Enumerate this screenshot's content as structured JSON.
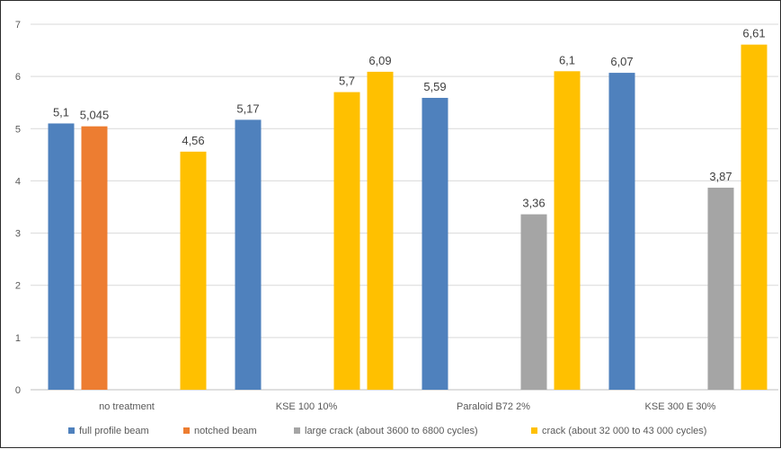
{
  "chart_data": {
    "type": "bar",
    "title": "",
    "xlabel": "",
    "ylabel": "",
    "ylim": [
      0,
      7
    ],
    "yticks": [
      "0",
      "1",
      "2",
      "3",
      "4",
      "5",
      "6",
      "7"
    ],
    "grid": true,
    "legend_position": "bottom",
    "categories": [
      "no treatment",
      "KSE 100 10%",
      "Paraloid B72 2%",
      "KSE 300 E 30%"
    ],
    "series": [
      {
        "name": "full profile beam",
        "color": "#4F81BD",
        "values": [
          5.1,
          5.17,
          5.59,
          6.07
        ],
        "labels": [
          "5,1",
          "5,17",
          "5,59",
          "6,07"
        ]
      },
      {
        "name": "notched beam",
        "color": "#ED7D31",
        "values": [
          5.045,
          null,
          null,
          null
        ],
        "labels": [
          "5,045",
          null,
          null,
          null
        ]
      },
      {
        "name": "large crack (about 3600 to 6800 cycles)",
        "color": "#A5A5A5",
        "values": [
          null,
          null,
          3.36,
          3.87
        ],
        "labels": [
          null,
          null,
          "3,36",
          "3,87"
        ]
      },
      {
        "name": "crack (about 32 000 to 43 000 cycles)",
        "color": "#FFC000",
        "values": [
          4.56,
          6.09,
          6.1,
          6.61
        ],
        "labels": [
          "4,56",
          "6,09",
          "6,1",
          "6,61"
        ]
      }
    ],
    "extra_series": {
      "name": "",
      "color": "#FFC000",
      "values": [
        null,
        5.7,
        null,
        null
      ],
      "labels": [
        null,
        "5,7",
        null,
        null
      ]
    }
  }
}
